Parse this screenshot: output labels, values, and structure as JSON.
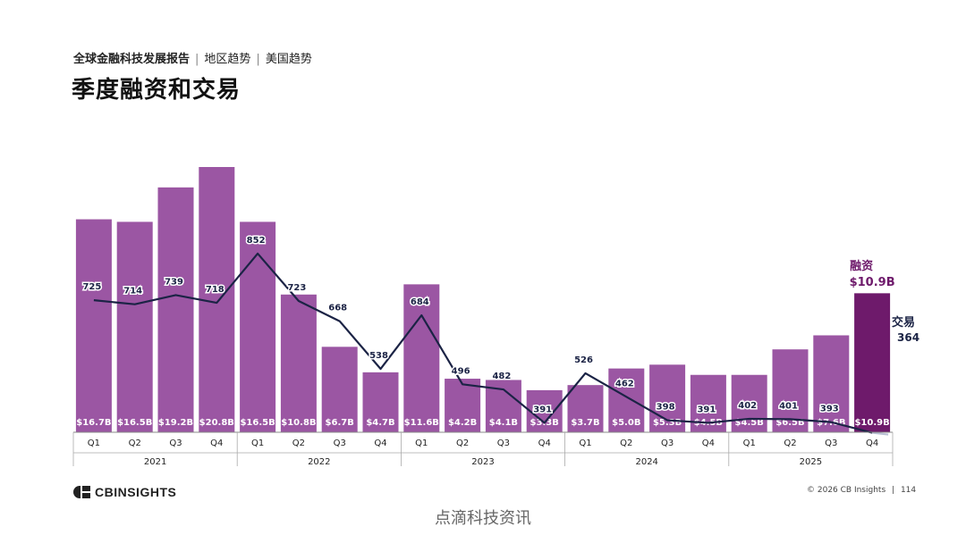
{
  "header": {
    "breadcrumb_main": "全球金融科技发展报告",
    "breadcrumb_sep": "|",
    "breadcrumb_item1": "地区趋势",
    "breadcrumb_item2": "美国趋势",
    "title": "季度融资和交易"
  },
  "chart_data": {
    "type": "bar",
    "title": "季度融资和交易",
    "categories": [
      "Q1",
      "Q2",
      "Q3",
      "Q4",
      "Q1",
      "Q2",
      "Q3",
      "Q4",
      "Q1",
      "Q2",
      "Q3",
      "Q4",
      "Q1",
      "Q2",
      "Q3",
      "Q4",
      "Q1",
      "Q2",
      "Q3",
      "Q4"
    ],
    "years": [
      {
        "label": "2021",
        "span": [
          0,
          3
        ]
      },
      {
        "label": "2022",
        "span": [
          4,
          7
        ]
      },
      {
        "label": "2023",
        "span": [
          8,
          11
        ]
      },
      {
        "label": "2024",
        "span": [
          12,
          15
        ]
      },
      {
        "label": "2025",
        "span": [
          16,
          19
        ]
      }
    ],
    "series": [
      {
        "name": "融资",
        "kind": "bar",
        "unit": "$B",
        "values": [
          16.7,
          16.5,
          19.2,
          20.8,
          16.5,
          10.8,
          6.7,
          4.7,
          11.6,
          4.2,
          4.1,
          3.3,
          3.7,
          5.0,
          5.3,
          4.5,
          4.5,
          6.5,
          7.6,
          10.9
        ],
        "labels": [
          "$16.7B",
          "$16.5B",
          "$19.2B",
          "$20.8B",
          "$16.5B",
          "$10.8B",
          "$6.7B",
          "$4.7B",
          "$11.6B",
          "$4.2B",
          "$4.1B",
          "$3.3B",
          "$3.7B",
          "$5.0B",
          "$5.3B",
          "$4.5B",
          "$4.5B",
          "$6.5B",
          "$7.6B",
          "$10.9B"
        ]
      },
      {
        "name": "交易",
        "kind": "line",
        "values": [
          725,
          714,
          739,
          718,
          852,
          723,
          668,
          538,
          684,
          496,
          482,
          391,
          526,
          462,
          398,
          391,
          402,
          401,
          393,
          364
        ],
        "labels": [
          "725",
          "714",
          "739",
          "718",
          "852",
          "723",
          "668",
          "538",
          "684",
          "496",
          "482",
          "391",
          "526",
          "462",
          "398",
          "391",
          "402",
          "401",
          "393",
          "364"
        ]
      }
    ],
    "callouts": {
      "funding_name": "融资",
      "funding_value": "$10.9B",
      "deals_name": "交易",
      "deals_value": "364"
    },
    "grid": false,
    "colors": {
      "bar": "#9b56a3",
      "bar_highlight": "#6e1a6b",
      "line": "#1b2345",
      "line_last": "#b9c0d4",
      "callout": "#6e1a6b"
    }
  },
  "footer": {
    "logo": "CBINSIGHTS",
    "copyright": "© 2026 CB Insights",
    "page_sep": "|",
    "page": "114",
    "watermark": "点滴科技资讯"
  }
}
